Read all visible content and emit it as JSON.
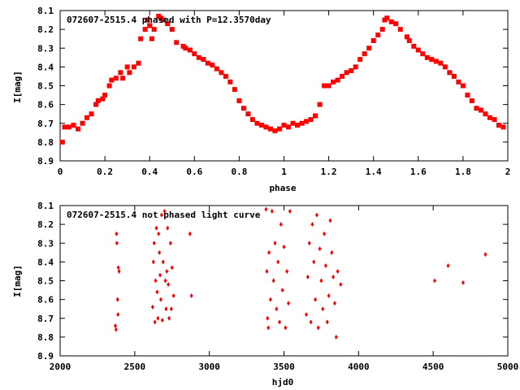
{
  "chart_data": [
    {
      "type": "scatter",
      "title": "072607-2515.4 phased with P=12.3570day",
      "xlabel": "phase",
      "ylabel": "I[mag]",
      "xlim": [
        0,
        2
      ],
      "ylim": [
        8.1,
        8.9
      ],
      "y_inverted": true,
      "xticks": [
        "0",
        "0.2",
        "0.4",
        "0.6",
        "0.8",
        "1",
        "1.2",
        "1.4",
        "1.6",
        "1.8",
        "2"
      ],
      "yticks": [
        "8.1",
        "8.2",
        "8.3",
        "8.4",
        "8.5",
        "8.6",
        "8.7",
        "8.8",
        "8.9"
      ],
      "marker_color": "#ff0000",
      "series": [
        {
          "x": [
            0.01,
            0.02,
            0.04,
            0.06,
            0.08,
            0.1,
            0.12,
            0.14,
            0.16,
            0.17,
            0.19,
            0.2,
            0.22,
            0.23,
            0.25,
            0.27,
            0.28,
            0.3,
            0.31,
            0.33,
            0.35,
            0.36,
            0.38,
            0.39,
            0.4,
            0.41,
            0.42,
            0.44,
            0.45,
            0.46,
            0.48,
            0.5,
            0.52,
            0.55,
            0.56,
            0.58,
            0.6,
            0.62,
            0.64,
            0.66,
            0.68,
            0.7,
            0.72,
            0.74,
            0.76,
            0.78,
            0.8,
            0.82,
            0.84,
            0.86,
            0.88,
            0.9,
            0.92,
            0.94,
            0.96,
            0.98,
            1.0,
            1.02,
            1.04,
            1.06,
            1.08,
            1.1,
            1.12,
            1.14,
            1.16,
            1.18,
            1.2,
            1.22,
            1.24,
            1.26,
            1.28,
            1.3,
            1.32,
            1.34,
            1.36,
            1.38,
            1.4,
            1.42,
            1.44,
            1.45,
            1.46,
            1.48,
            1.5,
            1.52,
            1.55,
            1.56,
            1.58,
            1.6,
            1.62,
            1.64,
            1.66,
            1.68,
            1.7,
            1.72,
            1.74,
            1.76,
            1.78,
            1.8,
            1.82,
            1.84,
            1.86,
            1.88,
            1.9,
            1.92,
            1.94,
            1.96,
            1.98
          ],
          "y": [
            8.8,
            8.72,
            8.72,
            8.71,
            8.73,
            8.7,
            8.67,
            8.65,
            8.6,
            8.58,
            8.57,
            8.55,
            8.5,
            8.47,
            8.46,
            8.43,
            8.46,
            8.4,
            8.43,
            8.4,
            8.38,
            8.25,
            8.2,
            8.15,
            8.18,
            8.25,
            8.2,
            8.13,
            8.14,
            8.15,
            8.17,
            8.2,
            8.27,
            8.29,
            8.3,
            8.31,
            8.33,
            8.35,
            8.36,
            8.38,
            8.39,
            8.41,
            8.43,
            8.45,
            8.48,
            8.52,
            8.58,
            8.62,
            8.65,
            8.68,
            8.7,
            8.71,
            8.72,
            8.73,
            8.74,
            8.73,
            8.71,
            8.72,
            8.7,
            8.71,
            8.7,
            8.69,
            8.68,
            8.66,
            8.6,
            8.5,
            8.5,
            8.48,
            8.47,
            8.45,
            8.43,
            8.42,
            8.4,
            8.36,
            8.33,
            8.3,
            8.26,
            8.23,
            8.2,
            8.15,
            8.14,
            8.16,
            8.17,
            8.2,
            8.24,
            8.26,
            8.29,
            8.31,
            8.33,
            8.35,
            8.36,
            8.37,
            8.38,
            8.4,
            8.43,
            8.45,
            8.48,
            8.5,
            8.55,
            8.58,
            8.62,
            8.63,
            8.65,
            8.67,
            8.68,
            8.71,
            8.72
          ]
        }
      ]
    },
    {
      "type": "scatter",
      "title": "072607-2515.4 not phased light curve",
      "xlabel": "hjd0",
      "ylabel": "I[mag]",
      "xlim": [
        2000,
        5000
      ],
      "ylim": [
        8.1,
        8.9
      ],
      "y_inverted": true,
      "xticks": [
        "2000",
        "2500",
        "3000",
        "3500",
        "4000",
        "4500",
        "5000"
      ],
      "yticks": [
        "8.1",
        "8.2",
        "8.3",
        "8.4",
        "8.5",
        "8.6",
        "8.7",
        "8.8",
        "8.9"
      ],
      "marker_color": "#ff0000",
      "series": [
        {
          "x": [
            2370,
            2375,
            2378,
            2380,
            2385,
            2388,
            2390,
            2395,
            2620,
            2625,
            2630,
            2635,
            2640,
            2645,
            2650,
            2655,
            2660,
            2665,
            2670,
            2675,
            2680,
            2685,
            2690,
            2700,
            2705,
            2710,
            2715,
            2720,
            2725,
            2730,
            2740,
            2745,
            2750,
            2760,
            2870,
            2880,
            3380,
            3385,
            3390,
            3395,
            3400,
            3410,
            3420,
            3430,
            3440,
            3450,
            3460,
            3470,
            3480,
            3490,
            3500,
            3510,
            3520,
            3530,
            3540,
            3650,
            3660,
            3670,
            3680,
            3690,
            3700,
            3710,
            3720,
            3730,
            3740,
            3750,
            3760,
            3770,
            3780,
            3790,
            3800,
            3810,
            3820,
            3830,
            3840,
            3850,
            3860,
            3880,
            4510,
            4600,
            4700,
            4850
          ],
          "y": [
            8.74,
            8.76,
            8.25,
            8.3,
            8.6,
            8.68,
            8.43,
            8.45,
            8.64,
            8.4,
            8.3,
            8.72,
            8.5,
            8.22,
            8.56,
            8.7,
            8.25,
            8.35,
            8.47,
            8.6,
            8.15,
            8.71,
            8.4,
            8.13,
            8.5,
            8.65,
            8.45,
            8.22,
            8.52,
            8.7,
            8.3,
            8.65,
            8.43,
            8.58,
            8.25,
            8.58,
            8.12,
            8.45,
            8.7,
            8.75,
            8.35,
            8.6,
            8.13,
            8.5,
            8.3,
            8.65,
            8.4,
            8.72,
            8.2,
            8.55,
            8.32,
            8.75,
            8.45,
            8.62,
            8.13,
            8.68,
            8.48,
            8.3,
            8.72,
            8.2,
            8.4,
            8.6,
            8.15,
            8.75,
            8.33,
            8.5,
            8.65,
            8.25,
            8.42,
            8.72,
            8.58,
            8.18,
            8.35,
            8.48,
            8.62,
            8.8,
            8.45,
            8.52,
            8.5,
            8.42,
            8.51,
            8.36
          ]
        }
      ]
    }
  ]
}
